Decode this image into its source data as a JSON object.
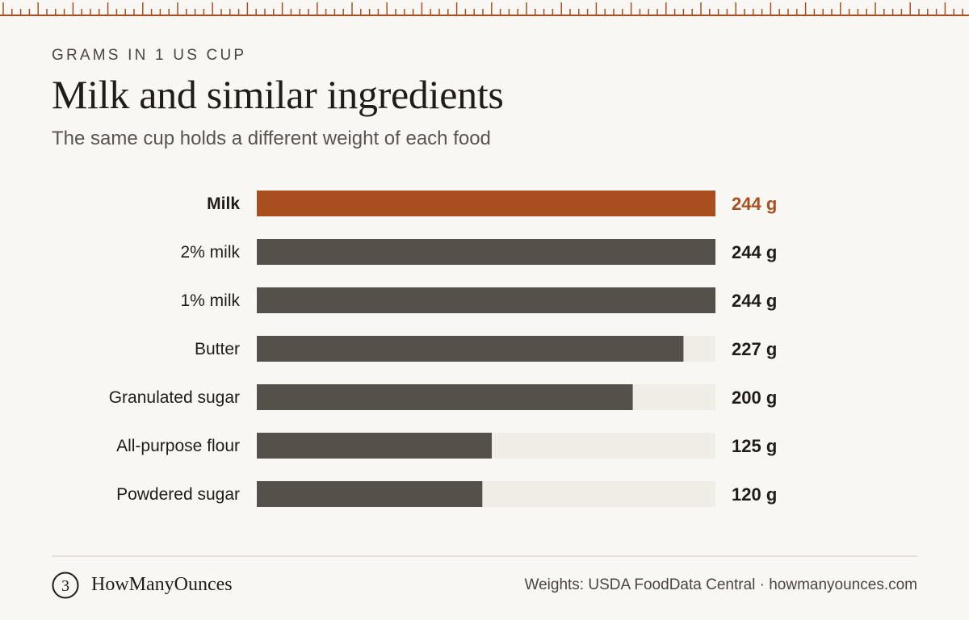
{
  "header": {
    "eyebrow": "GRAMS IN 1 US CUP",
    "title": "Milk and similar ingredients",
    "subtitle": "The same cup holds a different weight of each food"
  },
  "chart_data": {
    "type": "bar",
    "orientation": "horizontal",
    "categories": [
      "Milk",
      "2% milk",
      "1% milk",
      "Butter",
      "Granulated sugar",
      "All-purpose flour",
      "Powdered sugar"
    ],
    "values": [
      244,
      244,
      244,
      227,
      200,
      125,
      120
    ],
    "value_labels": [
      "244 g",
      "244 g",
      "244 g",
      "227 g",
      "200 g",
      "125 g",
      "120 g"
    ],
    "highlight_index": 0,
    "xlim": [
      0,
      244
    ],
    "grid": false,
    "colors": {
      "highlight": "#a94f1f",
      "bar": "#56504a",
      "track": "#f0ede6",
      "label": "#1f1c19"
    }
  },
  "footer": {
    "logo_icon": "numeral-three-circle-icon",
    "logo_glyph": "3",
    "brand": "HowManyOunces",
    "source": "Weights: USDA FoodData Central · howmanyounces.com"
  },
  "ruler_color": "#a94f1f"
}
